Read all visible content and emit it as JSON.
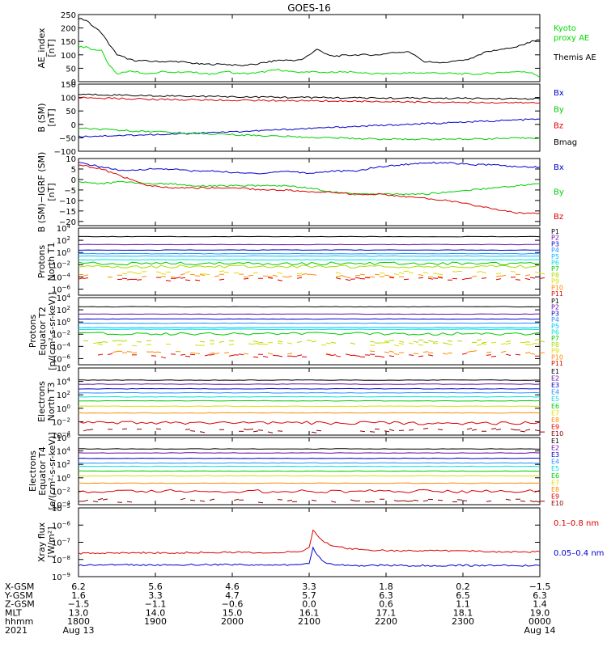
{
  "chart_data": {
    "type": "line",
    "title": "GOES-16",
    "x_range_hours": [
      18,
      24
    ],
    "panels": [
      {
        "id": "ae",
        "ylabel": [
          "AE_index",
          "[nT]"
        ],
        "scale": "linear",
        "ylim": [
          0,
          250
        ],
        "ticks": [
          0,
          50,
          100,
          150,
          200,
          250
        ],
        "tick_labels": [
          "0",
          "50",
          "100",
          "150",
          "200",
          "250"
        ],
        "series": [
          {
            "name": "Kyoto proxy AE",
            "color": "#00dd00",
            "x": [
              18.0,
              18.1,
              18.2,
              18.3,
              18.4,
              18.5,
              18.7,
              18.9,
              19.1,
              19.3,
              19.5,
              19.7,
              19.9,
              20.1,
              20.3,
              20.6,
              20.8,
              21.0,
              21.2,
              21.4,
              21.6,
              21.8,
              22.0,
              22.3,
              22.6,
              22.9,
              23.2,
              23.5,
              23.8,
              23.9,
              24.0
            ],
            "y": [
              130,
              128,
              118,
              115,
              60,
              30,
              40,
              30,
              38,
              35,
              35,
              28,
              38,
              30,
              32,
              45,
              35,
              38,
              32,
              38,
              35,
              30,
              30,
              32,
              33,
              30,
              28,
              35,
              38,
              32,
              15
            ]
          },
          {
            "name": "Themis AE",
            "color": "#000000",
            "x": [
              18.0,
              18.1,
              18.2,
              18.3,
              18.5,
              18.7,
              19.0,
              19.3,
              19.6,
              19.9,
              20.1,
              20.3,
              20.6,
              20.9,
              21.1,
              21.3,
              21.6,
              21.9,
              22.1,
              22.3,
              22.5,
              22.7,
              22.9,
              23.1,
              23.3,
              23.5,
              23.7,
              23.9,
              24.0
            ],
            "y": [
              235,
              230,
              205,
              180,
              100,
              80,
              75,
              75,
              65,
              65,
              60,
              65,
              80,
              80,
              120,
              95,
              100,
              100,
              110,
              110,
              75,
              70,
              75,
              85,
              110,
              120,
              130,
              150,
              155
            ]
          }
        ],
        "legend": [
          {
            "text": [
              "Kyoto",
              "proxy AE"
            ],
            "color": "#00dd00"
          },
          {
            "text": [
              "Themis AE"
            ],
            "color": "#000000"
          }
        ]
      },
      {
        "id": "bsm",
        "ylabel": [
          "B (SM)",
          "[nT]"
        ],
        "scale": "linear",
        "ylim": [
          -100,
          150
        ],
        "ticks": [
          -100,
          -50,
          0,
          50,
          100,
          150
        ],
        "tick_labels": [
          "−100",
          "−50",
          "0",
          "50",
          "100",
          "150"
        ],
        "series": [
          {
            "name": "Bx",
            "color": "#0000cc",
            "x": [
              18,
              19,
              20,
              21,
              22,
              23,
              24
            ],
            "y": [
              -45,
              -38,
              -28,
              -15,
              -3,
              8,
              20
            ]
          },
          {
            "name": "By",
            "color": "#00cc00",
            "x": [
              18,
              19,
              20,
              21,
              22,
              23,
              24
            ],
            "y": [
              -15,
              -28,
              -38,
              -48,
              -55,
              -55,
              -50
            ]
          },
          {
            "name": "Bz",
            "color": "#dd0000",
            "x": [
              18,
              19,
              20,
              21,
              22,
              23,
              24
            ],
            "y": [
              100,
              93,
              90,
              88,
              85,
              82,
              80
            ]
          },
          {
            "name": "Bmag",
            "color": "#000000",
            "x": [
              18,
              19,
              20,
              21,
              22,
              23,
              24
            ],
            "y": [
              112,
              107,
              103,
              100,
              98,
              97,
              95
            ]
          }
        ],
        "legend": [
          {
            "text": [
              "Bx"
            ],
            "color": "#0000cc"
          },
          {
            "text": [
              "By"
            ],
            "color": "#00cc00"
          },
          {
            "text": [
              "Bz"
            ],
            "color": "#dd0000"
          },
          {
            "text": [
              "Bmag"
            ],
            "color": "#000000"
          }
        ]
      },
      {
        "id": "bigrf",
        "ylabel": [
          "B (SM)−IGRF (SM)",
          "[nT]"
        ],
        "scale": "linear",
        "ylim": [
          -22,
          10
        ],
        "ticks": [
          -20,
          -15,
          -10,
          -5,
          0,
          5,
          10
        ],
        "tick_labels": [
          "−20",
          "−15",
          "−10",
          "−5",
          "0",
          "5",
          "10"
        ],
        "series": [
          {
            "name": "Bx",
            "color": "#0000cc",
            "x": [
              18.0,
              18.3,
              18.6,
              18.9,
              19.2,
              19.5,
              19.8,
              20.1,
              20.4,
              20.7,
              21.0,
              21.3,
              21.6,
              21.9,
              22.2,
              22.5,
              22.8,
              23.1,
              23.4,
              23.7,
              24.0
            ],
            "y": [
              8,
              6,
              4,
              5,
              5,
              4,
              4,
              3,
              3,
              4,
              3,
              4,
              4,
              6,
              7,
              8,
              8,
              7,
              7,
              6,
              6
            ]
          },
          {
            "name": "By",
            "color": "#00cc00",
            "x": [
              18.0,
              18.3,
              18.6,
              18.9,
              19.2,
              19.5,
              19.8,
              20.1,
              20.4,
              20.7,
              21.0,
              21.3,
              21.6,
              21.9,
              22.2,
              22.5,
              22.8,
              23.1,
              23.4,
              23.7,
              24.0
            ],
            "y": [
              -1,
              -2,
              -1,
              -2,
              -2,
              -3,
              -3,
              -3,
              -3,
              -3,
              -4,
              -6,
              -7,
              -7,
              -7,
              -7,
              -6,
              -5,
              -4,
              -3,
              -2
            ]
          },
          {
            "name": "Bz",
            "color": "#dd0000",
            "x": [
              18.0,
              18.3,
              18.6,
              18.9,
              19.2,
              19.5,
              19.8,
              20.1,
              20.4,
              20.7,
              21.0,
              21.3,
              21.6,
              21.9,
              22.2,
              22.5,
              22.8,
              23.1,
              23.4,
              23.7,
              24.0
            ],
            "y": [
              7,
              5,
              1,
              -3,
              -4,
              -4,
              -4,
              -4,
              -5,
              -5,
              -6,
              -6,
              -7,
              -7,
              -8,
              -9,
              -10,
              -12,
              -14,
              -16,
              -16
            ]
          }
        ],
        "legend": [
          {
            "text": [
              "Bx"
            ],
            "color": "#0000cc"
          },
          {
            "text": [
              "By"
            ],
            "color": "#00cc00"
          },
          {
            "text": [
              "Bz"
            ],
            "color": "#dd0000"
          }
        ]
      },
      {
        "id": "pnorth",
        "ylabel": [
          "Protons",
          "North T1"
        ],
        "scale": "log",
        "ylim_exp": [
          -7,
          4
        ],
        "tick_exps": [
          -6,
          -4,
          -2,
          0,
          2,
          4
        ],
        "channels": [
          {
            "name": "P1",
            "color": "#000000",
            "log": 2.6
          },
          {
            "name": "P2",
            "color": "#6a0dad",
            "log": 1.3
          },
          {
            "name": "P3",
            "color": "#0000cc",
            "log": 0.4
          },
          {
            "name": "P4",
            "color": "#1e90ff",
            "log": -0.2
          },
          {
            "name": "P5",
            "color": "#00bfff",
            "log": -0.6
          },
          {
            "name": "P6",
            "color": "#00dddd",
            "log": -1.2
          },
          {
            "name": "P7",
            "color": "#00cc00",
            "log": -1.8
          },
          {
            "name": "P8",
            "color": "#aadd00",
            "log": -2.3
          },
          {
            "name": "P9",
            "color": "#dddd00",
            "log": -3.3
          },
          {
            "name": "P10",
            "color": "#ff8c00",
            "log": -3.8
          },
          {
            "name": "P11",
            "color": "#dd0000",
            "log": -4.3
          }
        ]
      },
      {
        "id": "pequator",
        "ylabel": [
          "Protons",
          "Equator T2",
          "[p/(cm²-s-sr-keV)]"
        ],
        "scale": "log",
        "ylim_exp": [
          -7,
          4
        ],
        "tick_exps": [
          -6,
          -4,
          -2,
          0,
          2,
          4
        ],
        "channels": [
          {
            "name": "P1",
            "color": "#000000",
            "log": 2.5
          },
          {
            "name": "P2",
            "color": "#6a0dad",
            "log": 1.3
          },
          {
            "name": "P3",
            "color": "#0000cc",
            "log": 0.5
          },
          {
            "name": "P4",
            "color": "#1e90ff",
            "log": -0.2
          },
          {
            "name": "P5",
            "color": "#00bfff",
            "log": -0.9
          },
          {
            "name": "P6",
            "color": "#00dddd",
            "log": -1.2
          },
          {
            "name": "P7",
            "color": "#00cc00",
            "log": -1.9
          },
          {
            "name": "P8",
            "color": "#aadd00",
            "log": -3.2
          },
          {
            "name": "P9",
            "color": "#dddd00",
            "log": -3.6
          },
          {
            "name": "P10",
            "color": "#ff8c00",
            "log": -5.0
          },
          {
            "name": "P11",
            "color": "#dd0000",
            "log": -5.5
          }
        ]
      },
      {
        "id": "enorth",
        "ylabel": [
          "Electrons",
          "North T3"
        ],
        "scale": "log",
        "ylim_exp": [
          -4,
          6
        ],
        "tick_exps": [
          -4,
          -2,
          0,
          2,
          4,
          6
        ],
        "channels": [
          {
            "name": "E1",
            "color": "#000000",
            "log": 4.2
          },
          {
            "name": "E2",
            "color": "#6a0dad",
            "log": 3.6
          },
          {
            "name": "E3",
            "color": "#0000cc",
            "log": 2.9
          },
          {
            "name": "E4",
            "color": "#1e90ff",
            "log": 2.3
          },
          {
            "name": "E5",
            "color": "#00dddd",
            "log": 1.7
          },
          {
            "name": "E6",
            "color": "#00cc00",
            "log": 1.1
          },
          {
            "name": "E7",
            "color": "#dddd00",
            "log": 0.3
          },
          {
            "name": "E8",
            "color": "#ff8c00",
            "log": -0.7
          },
          {
            "name": "E9",
            "color": "#dd0000",
            "log": -2.2
          },
          {
            "name": "E10",
            "color": "#8b0000",
            "log": -3.3
          }
        ]
      },
      {
        "id": "eequator",
        "ylabel": [
          "Electrons",
          "Equator T4",
          "[e/(cm²-s-sr-keV)]"
        ],
        "scale": "log",
        "ylim_exp": [
          -4,
          6
        ],
        "tick_exps": [
          -4,
          -2,
          0,
          2,
          4,
          6
        ],
        "channels": [
          {
            "name": "E1",
            "color": "#000000",
            "log": 4.3
          },
          {
            "name": "E2",
            "color": "#6a0dad",
            "log": 3.7
          },
          {
            "name": "E3",
            "color": "#0000cc",
            "log": 2.9
          },
          {
            "name": "E4",
            "color": "#1e90ff",
            "log": 2.2
          },
          {
            "name": "E5",
            "color": "#00dddd",
            "log": 1.7
          },
          {
            "name": "E6",
            "color": "#00cc00",
            "log": 1.0
          },
          {
            "name": "E7",
            "color": "#dddd00",
            "log": 0.3
          },
          {
            "name": "E8",
            "color": "#ff8c00",
            "log": -0.8
          },
          {
            "name": "E9",
            "color": "#dd0000",
            "log": -2.0
          },
          {
            "name": "E10",
            "color": "#8b0000",
            "log": -3.4
          }
        ]
      },
      {
        "id": "xray",
        "ylabel": [
          "Xray flux",
          "[W/m²]"
        ],
        "scale": "log",
        "ylim_exp": [
          -9,
          -5
        ],
        "tick_exps": [
          -9,
          -8,
          -7,
          -6,
          -5
        ],
        "series": [
          {
            "name": "0.1–0.8 nm",
            "color": "#dd0000",
            "x": [
              18.0,
              18.5,
              19.0,
              19.5,
              20.0,
              20.5,
              20.9,
              21.0,
              21.05,
              21.1,
              21.2,
              21.3,
              21.5,
              21.8,
              22.2,
              22.6,
              23.0,
              23.5,
              24.0
            ],
            "y": [
              -7.65,
              -7.6,
              -7.62,
              -7.6,
              -7.58,
              -7.6,
              -7.55,
              -7.3,
              -6.3,
              -6.55,
              -7.0,
              -7.2,
              -7.35,
              -7.45,
              -7.5,
              -7.5,
              -7.5,
              -7.55,
              -7.55
            ]
          },
          {
            "name": "0.05–0.4 nm",
            "color": "#0000cc",
            "x": [
              18.0,
              18.5,
              19.0,
              19.5,
              20.0,
              20.5,
              20.9,
              21.0,
              21.05,
              21.1,
              21.2,
              21.3,
              21.5,
              21.8,
              22.2,
              22.6,
              23.0,
              23.5,
              24.0
            ],
            "y": [
              -8.35,
              -8.3,
              -8.32,
              -8.3,
              -8.3,
              -8.35,
              -8.3,
              -8.2,
              -7.3,
              -7.7,
              -8.15,
              -8.3,
              -8.35,
              -8.35,
              -8.35,
              -8.35,
              -8.35,
              -8.35,
              -8.35
            ]
          }
        ],
        "legend": [
          {
            "text": [
              "0.1–0.8 nm"
            ],
            "color": "#dd0000"
          },
          {
            "text": [
              "0.05–0.4 nm"
            ],
            "color": "#0000cc"
          }
        ]
      }
    ],
    "table": {
      "rows": [
        {
          "label": "X-GSM",
          "values": [
            "6.2",
            "5.6",
            "4.6",
            "3.3",
            "1.8",
            "0.2",
            "−1.5"
          ]
        },
        {
          "label": "Y-GSM",
          "values": [
            "1.6",
            "3.3",
            "4.7",
            "5.7",
            "6.3",
            "6.5",
            "6.3"
          ]
        },
        {
          "label": "Z-GSM",
          "values": [
            "−1.5",
            "−1.1",
            "−0.6",
            "0.0",
            "0.6",
            "1.1",
            "1.4"
          ]
        },
        {
          "label": "MLT",
          "values": [
            "13.0",
            "14.0",
            "15.0",
            "16.1",
            "17.1",
            "18.1",
            "19.0"
          ]
        },
        {
          "label": "hhmm",
          "values": [
            "1800",
            "1900",
            "2000",
            "2100",
            "2200",
            "2300",
            "0000"
          ]
        }
      ],
      "year": "2021",
      "date_start": "Aug 13",
      "date_end": "Aug 14"
    }
  }
}
